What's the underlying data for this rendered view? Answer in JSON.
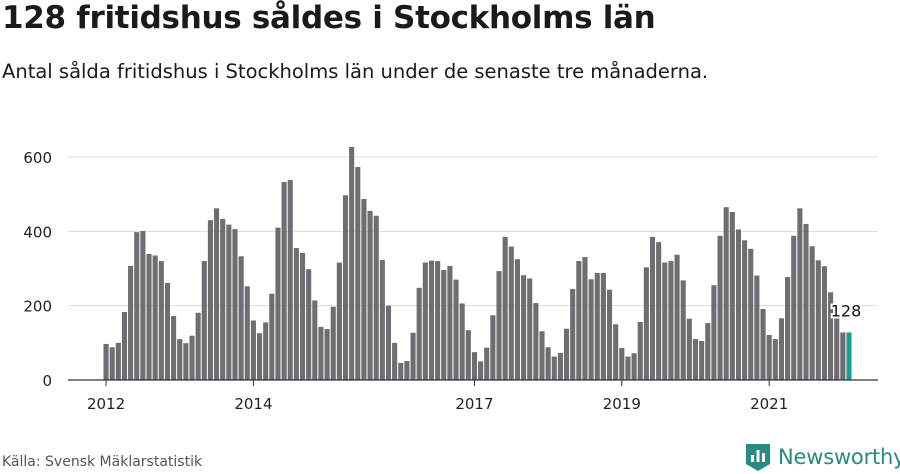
{
  "title": "128 fritidshus såldes i Stockholms län",
  "subtitle": "Antal sålda fritidshus i Stockholms län under de senaste tre månaderna.",
  "source": "Källa: Svensk Mäklarstatistik",
  "brand": {
    "name": "Newsworthy",
    "color": "#2a8a82",
    "icon": "newsworthy-logo-icon"
  },
  "colors": {
    "bar": "#6e6d72",
    "highlight": "#1a9e94",
    "grid": "#dddddd",
    "axis": "#333333"
  },
  "chart_data": {
    "type": "bar",
    "title": "128 fritidshus såldes i Stockholms län",
    "xlabel": "",
    "ylabel": "",
    "ylim": [
      0,
      650
    ],
    "yticks": [
      0,
      200,
      400,
      600
    ],
    "xticks": [
      {
        "label": "2012",
        "index": 0
      },
      {
        "label": "2014",
        "index": 24
      },
      {
        "label": "2017",
        "index": 60
      },
      {
        "label": "2019",
        "index": 84
      },
      {
        "label": "2021",
        "index": 108
      }
    ],
    "grid": true,
    "annotation": {
      "label": "128",
      "index": 121
    },
    "values": [
      97,
      88,
      100,
      183,
      307,
      398,
      401,
      339,
      335,
      320,
      261,
      172,
      110,
      99,
      119,
      181,
      320,
      430,
      462,
      433,
      418,
      406,
      333,
      252,
      160,
      126,
      155,
      232,
      410,
      533,
      538,
      355,
      342,
      298,
      214,
      143,
      137,
      197,
      316,
      497,
      627,
      573,
      487,
      455,
      442,
      323,
      200,
      100,
      46,
      51,
      127,
      248,
      316,
      321,
      320,
      296,
      307,
      270,
      206,
      134,
      75,
      50,
      87,
      174,
      293,
      385,
      359,
      325,
      282,
      273,
      207,
      131,
      88,
      63,
      73,
      138,
      245,
      320,
      331,
      271,
      288,
      288,
      243,
      150,
      86,
      63,
      72,
      156,
      303,
      385,
      371,
      316,
      320,
      337,
      268,
      165,
      110,
      105,
      153,
      255,
      388,
      465,
      452,
      405,
      376,
      353,
      281,
      191,
      121,
      110,
      166,
      277,
      388,
      462,
      420,
      360,
      322,
      306,
      236,
      172,
      128,
      128
    ]
  }
}
